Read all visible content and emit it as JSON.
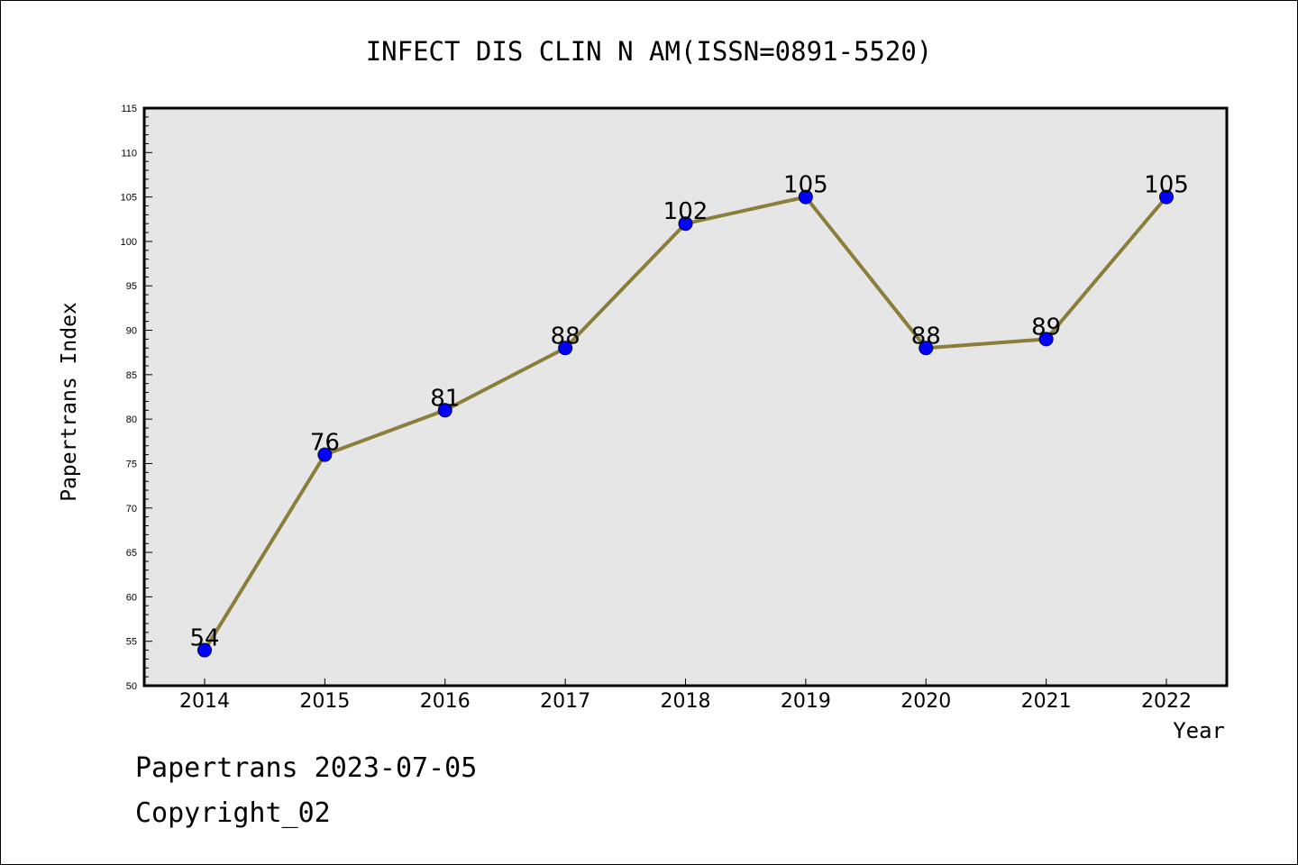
{
  "chart_data": {
    "type": "line",
    "title": "INFECT DIS CLIN N AM(ISSN=0891-5520)",
    "xlabel": "Year",
    "ylabel": "Papertrans Index",
    "categories": [
      "2014",
      "2015",
      "2016",
      "2017",
      "2018",
      "2019",
      "2020",
      "2021",
      "2022"
    ],
    "series": [
      {
        "values": [
          54,
          76,
          81,
          88,
          102,
          105,
          88,
          89,
          105
        ]
      }
    ],
    "ylim": [
      50,
      115
    ],
    "yticks": [
      50,
      55,
      60,
      65,
      70,
      75,
      80,
      85,
      90,
      95,
      100,
      105,
      110,
      115
    ],
    "data_labels": [
      "54",
      "76",
      "81",
      "88",
      "102",
      "105",
      "88",
      "89",
      "105"
    ],
    "grid": false,
    "colors": {
      "line": "#8b7d3a",
      "marker": "#0000ff",
      "plot_background": "#e6e6e6"
    }
  },
  "footer": {
    "line1": "Papertrans 2023-07-05",
    "line2": "Copyright_02"
  }
}
